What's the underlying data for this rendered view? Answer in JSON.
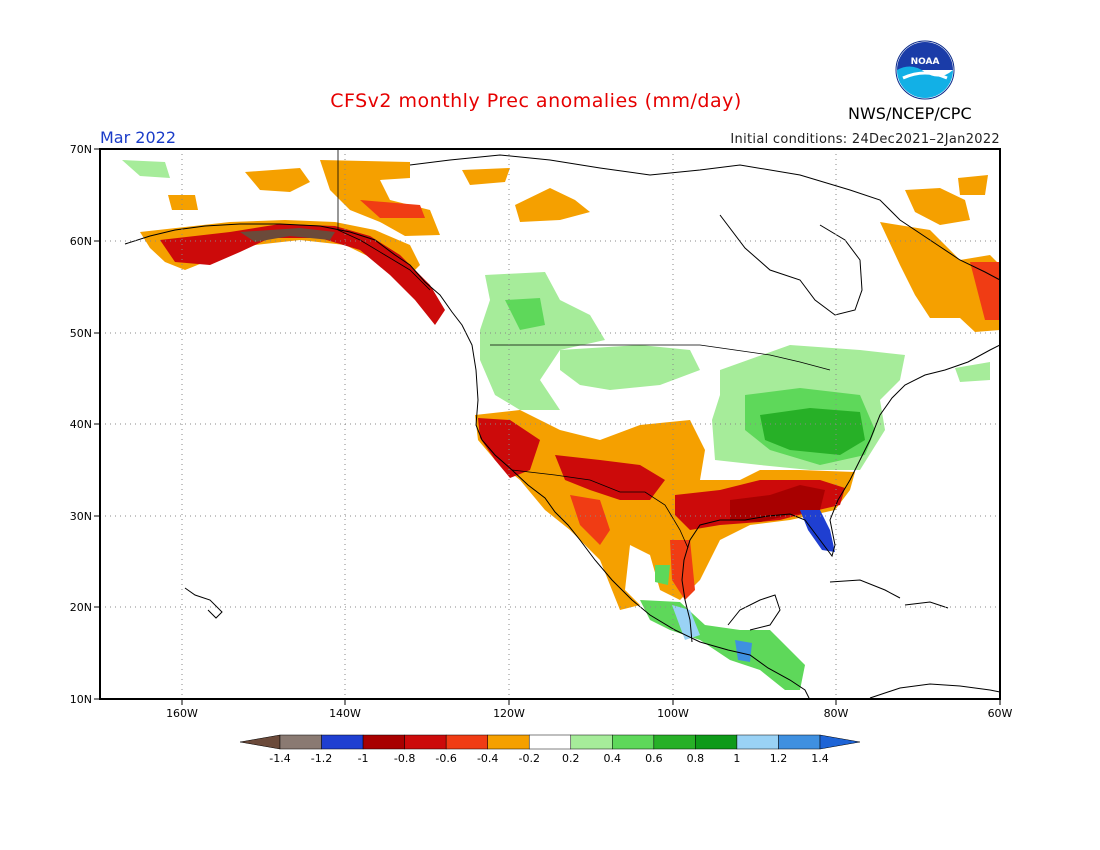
{
  "header": {
    "title": "CFSv2 monthly Prec anomalies (mm/day)",
    "month": "Mar 2022",
    "agency": "NWS/NCEP/CPC",
    "initial_conditions": "Initial conditions: 24Dec2021–2Jan2022",
    "logo_text": "NOAA"
  },
  "map": {
    "lon_range": [
      -170,
      -60
    ],
    "lat_range": [
      10,
      70
    ],
    "lat_ticks": [
      "70N",
      "60N",
      "50N",
      "40N",
      "30N",
      "20N",
      "10N"
    ],
    "lon_ticks": [
      "160W",
      "140W",
      "120W",
      "100W",
      "80W",
      "60W"
    ],
    "gridlines": true
  },
  "colorbar": {
    "labels": [
      "-1.4",
      "-1.2",
      "-1",
      "-0.8",
      "-0.6",
      "-0.4",
      "-0.2",
      "0.2",
      "0.4",
      "0.6",
      "0.8",
      "1",
      "1.2",
      "1.4"
    ],
    "colors": [
      "#6b4a3a",
      "#8a7a72",
      "#1f3fd1",
      "#a80000",
      "#cc0a0a",
      "#f03c14",
      "#f5a000",
      "#ffffff",
      "#a6ec9a",
      "#5ed85a",
      "#27b027",
      "#0e9a19",
      "#9ad2f5",
      "#3f90e0",
      "#1e64d6"
    ]
  },
  "colors": {
    "title": "#e60000",
    "month": "#1a3cc8"
  }
}
